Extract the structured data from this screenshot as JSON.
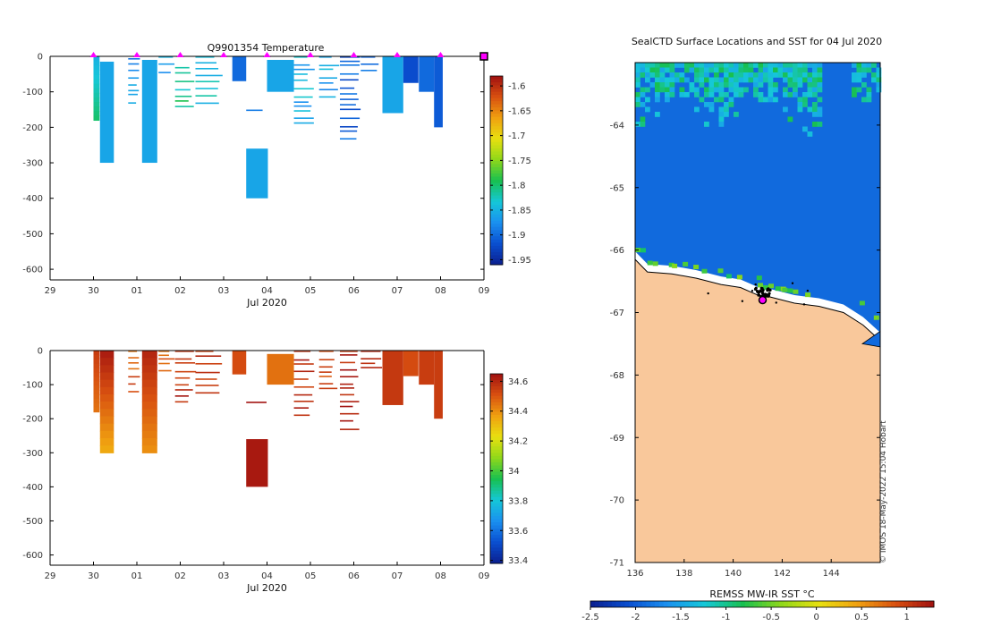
{
  "chart_data": [
    {
      "type": "heatmap",
      "title": "Q9901354  Temperature",
      "xlabel": "Jul 2020",
      "x_ticks": [
        "29",
        "30",
        "01",
        "02",
        "03",
        "04",
        "05",
        "06",
        "07",
        "08",
        "09"
      ],
      "x_range": [
        0,
        10
      ],
      "y_ticks": [
        0,
        -100,
        -200,
        -300,
        -400,
        -500,
        -600
      ],
      "y_range": [
        -630,
        0
      ],
      "colorbar": {
        "ticks": [
          "-1.6",
          "-1.65",
          "-1.7",
          "-1.75",
          "-1.8",
          "-1.85",
          "-1.9",
          "-1.95"
        ],
        "range": [
          -1.96,
          -1.58
        ],
        "colors": [
          "#0b1f8f",
          "#0a4fd0",
          "#1a90f0",
          "#15c8d8",
          "#18c050",
          "#8fd81a",
          "#e8e010",
          "#f0a010",
          "#d85010",
          "#a01010"
        ]
      },
      "surface_markers_x": [
        1,
        2,
        3,
        4,
        5,
        6,
        7,
        8,
        9,
        10
      ],
      "profiles": [
        {
          "x": 1.0,
          "w": 0.14,
          "top": 0,
          "bottom": -180,
          "v": -1.85,
          "grad_to": -1.8
        },
        {
          "x": 1.15,
          "w": 0.32,
          "top": -15,
          "bottom": -300,
          "v": -1.86
        },
        {
          "x": 1.8,
          "w": 0.28,
          "top": -5,
          "bottom": -130,
          "v": -1.87,
          "stripes": true
        },
        {
          "x": 2.12,
          "w": 0.35,
          "top": -10,
          "bottom": -300,
          "v": -1.86
        },
        {
          "x": 2.5,
          "w": 0.38,
          "top": 0,
          "bottom": -60,
          "v": -1.87,
          "stripes": true
        },
        {
          "x": 2.88,
          "w": 0.5,
          "top": -30,
          "bottom": -155,
          "v": -1.81,
          "stripes": true
        },
        {
          "x": 3.35,
          "w": 0.65,
          "top": 0,
          "bottom": -140,
          "v": -1.84,
          "stripes": true
        },
        {
          "x": 4.2,
          "w": 0.32,
          "top": 0,
          "bottom": -70,
          "v": -1.9
        },
        {
          "x": 4.52,
          "w": 0.5,
          "top": -150,
          "bottom": -150,
          "v": -1.88,
          "stripes": true
        },
        {
          "x": 4.52,
          "w": 0.5,
          "top": -260,
          "bottom": -400,
          "v": -1.86
        },
        {
          "x": 5.0,
          "w": 0.62,
          "top": -10,
          "bottom": -100,
          "v": -1.86
        },
        {
          "x": 5.62,
          "w": 0.48,
          "top": 0,
          "bottom": -190,
          "v": -1.85,
          "stripes": true
        },
        {
          "x": 6.2,
          "w": 0.48,
          "top": 0,
          "bottom": -110,
          "v": -1.86,
          "stripes": true
        },
        {
          "x": 6.68,
          "w": 0.48,
          "top": 0,
          "bottom": -240,
          "v": -1.91,
          "stripes": true
        },
        {
          "x": 7.16,
          "w": 0.5,
          "top": 0,
          "bottom": -55,
          "v": -1.9,
          "stripes": true
        },
        {
          "x": 7.66,
          "w": 0.48,
          "top": 0,
          "bottom": -160,
          "v": -1.86
        },
        {
          "x": 8.14,
          "w": 0.35,
          "top": 0,
          "bottom": -75,
          "v": -1.92
        },
        {
          "x": 8.5,
          "w": 0.35,
          "top": 0,
          "bottom": -100,
          "v": -1.9
        },
        {
          "x": 8.85,
          "w": 0.2,
          "top": 0,
          "bottom": -200,
          "v": -1.91
        }
      ]
    },
    {
      "type": "heatmap",
      "title": "",
      "xlabel": "Jul 2020",
      "x_ticks": [
        "29",
        "30",
        "01",
        "02",
        "03",
        "04",
        "05",
        "06",
        "07",
        "08",
        "09"
      ],
      "x_range": [
        0,
        10
      ],
      "y_ticks": [
        0,
        -100,
        -200,
        -300,
        -400,
        -500,
        -600
      ],
      "y_range": [
        -630,
        0
      ],
      "colorbar": {
        "ticks": [
          "34.6",
          "34.4",
          "34.2",
          "34",
          "33.8",
          "33.6",
          "33.4"
        ],
        "range": [
          33.38,
          34.65
        ],
        "colors": [
          "#0b1f8f",
          "#0a4fd0",
          "#1a90f0",
          "#15c8d8",
          "#18c050",
          "#8fd81a",
          "#e8e010",
          "#f0a010",
          "#d85010",
          "#a01010"
        ]
      },
      "profiles": [
        {
          "x": 1.0,
          "w": 0.14,
          "top": 0,
          "bottom": -180,
          "v": 34.55,
          "grad_to": 34.45
        },
        {
          "x": 1.15,
          "w": 0.32,
          "top": 0,
          "bottom": -300,
          "v": 34.62,
          "grad_to": 34.35
        },
        {
          "x": 1.8,
          "w": 0.28,
          "top": 0,
          "bottom": -130,
          "v": 34.5,
          "stripes": true
        },
        {
          "x": 2.12,
          "w": 0.35,
          "top": 0,
          "bottom": -300,
          "v": 34.6,
          "grad_to": 34.4
        },
        {
          "x": 2.5,
          "w": 0.38,
          "top": 0,
          "bottom": -60,
          "v": 34.5,
          "stripes": true
        },
        {
          "x": 2.88,
          "w": 0.5,
          "top": 0,
          "bottom": -155,
          "v": 34.58,
          "stripes": true
        },
        {
          "x": 3.35,
          "w": 0.65,
          "top": 0,
          "bottom": -140,
          "v": 34.55,
          "stripes": true
        },
        {
          "x": 4.2,
          "w": 0.32,
          "top": 0,
          "bottom": -70,
          "v": 34.52
        },
        {
          "x": 4.52,
          "w": 0.5,
          "top": -150,
          "bottom": -150,
          "v": 34.6,
          "stripes": true
        },
        {
          "x": 4.52,
          "w": 0.5,
          "top": -260,
          "bottom": -400,
          "v": 34.63
        },
        {
          "x": 5.0,
          "w": 0.62,
          "top": -10,
          "bottom": -100,
          "v": 34.45
        },
        {
          "x": 5.62,
          "w": 0.48,
          "top": 0,
          "bottom": -190,
          "v": 34.58,
          "stripes": true
        },
        {
          "x": 6.2,
          "w": 0.48,
          "top": 0,
          "bottom": -110,
          "v": 34.5,
          "stripes": true
        },
        {
          "x": 6.68,
          "w": 0.48,
          "top": 0,
          "bottom": -240,
          "v": 34.6,
          "stripes": true
        },
        {
          "x": 7.16,
          "w": 0.5,
          "top": 0,
          "bottom": -55,
          "v": 34.55,
          "stripes": true
        },
        {
          "x": 7.66,
          "w": 0.48,
          "top": 0,
          "bottom": -160,
          "v": 34.56
        },
        {
          "x": 8.14,
          "w": 0.35,
          "top": 0,
          "bottom": -75,
          "v": 34.52
        },
        {
          "x": 8.5,
          "w": 0.35,
          "top": 0,
          "bottom": -100,
          "v": 34.55
        },
        {
          "x": 8.85,
          "w": 0.2,
          "top": 0,
          "bottom": -200,
          "v": 34.55
        }
      ]
    },
    {
      "type": "heatmap",
      "title": "SealCTD Surface Locations and SST for 04 Jul 2020",
      "x_ticks": [
        "136",
        "138",
        "140",
        "142",
        "144"
      ],
      "x_range": [
        136,
        146
      ],
      "y_ticks": [
        "-64",
        "-65",
        "-66",
        "-67",
        "-68",
        "-69",
        "-70",
        "-71"
      ],
      "y_range": [
        -71,
        -63
      ],
      "colorbar_label": "REMSS MW-IR SST °C",
      "colorbar_ticks": [
        "-2.5",
        "-2",
        "-1.5",
        "-1",
        "-0.5",
        "0",
        "0.5",
        "1"
      ],
      "colorbar_range": [
        -2.5,
        1.3
      ],
      "sea_sst": -1.9,
      "land_color": "#f9c89b",
      "credit": "© IMOS 18-May-2022 15:04 Hobart",
      "coastline_lat": [
        -66.15,
        -66.35,
        -66.38,
        -66.45,
        -66.55,
        -66.6,
        -66.72,
        -66.75,
        -66.8,
        -66.85,
        -66.9,
        -67.0,
        -67.2,
        -67.45
      ],
      "coastline_lon": [
        136,
        136.5,
        137.5,
        138.5,
        139.5,
        140.3,
        141.0,
        141.5,
        142.0,
        142.5,
        143.5,
        144.5,
        145.3,
        146
      ],
      "seal_track": {
        "lon": 141.2,
        "lat": -66.8
      }
    }
  ]
}
